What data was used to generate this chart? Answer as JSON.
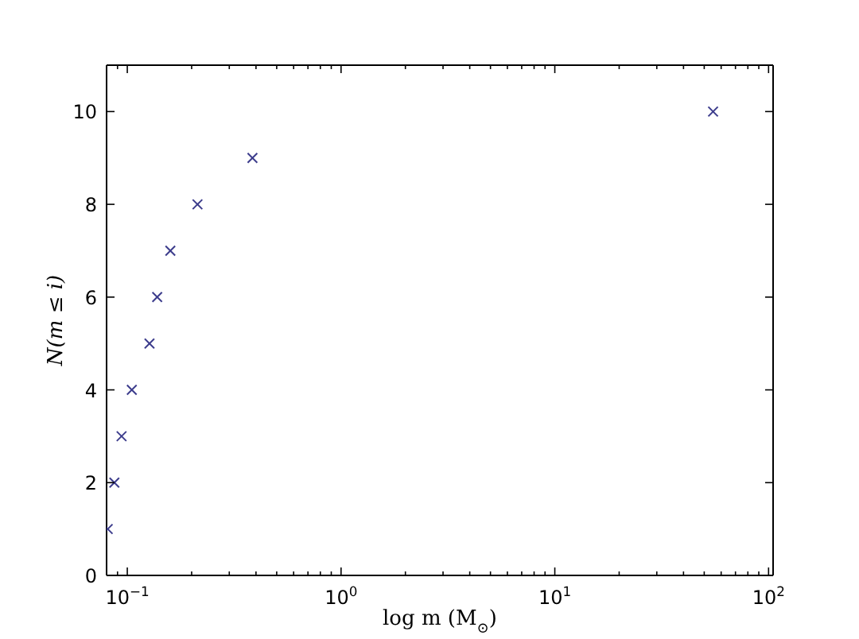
{
  "chart_data": {
    "type": "scatter",
    "xlabel": "log m (M$_{⊙}$)",
    "ylabel": "N(m ≤ i)",
    "x": [
      0.081,
      0.087,
      0.094,
      0.105,
      0.127,
      0.138,
      0.159,
      0.213,
      0.385,
      55
    ],
    "series": [
      {
        "color": "#3c3c8c",
        "values": [
          1,
          2,
          3,
          4,
          5,
          6,
          7,
          8,
          9,
          10
        ]
      }
    ],
    "marker": "cross",
    "log": "x",
    "xlim": [
      0.08,
      105
    ],
    "xticks": [
      {
        "value": 0.09,
        "label": null
      },
      {
        "value": 0.1,
        "label": "10$^{−1}$"
      },
      {
        "value": 0.2,
        "label": null
      },
      {
        "value": 0.3,
        "label": null
      },
      {
        "value": 0.4,
        "label": null
      },
      {
        "value": 0.5,
        "label": null
      },
      {
        "value": 0.6,
        "label": null
      },
      {
        "value": 0.7,
        "label": null
      },
      {
        "value": 0.8,
        "label": null
      },
      {
        "value": 0.9,
        "label": null
      },
      {
        "value": 1,
        "label": "10$^{0}$"
      },
      {
        "value": 2,
        "label": null
      },
      {
        "value": 3,
        "label": null
      },
      {
        "value": 4,
        "label": null
      },
      {
        "value": 5,
        "label": null
      },
      {
        "value": 6,
        "label": null
      },
      {
        "value": 7,
        "label": null
      },
      {
        "value": 8,
        "label": null
      },
      {
        "value": 9,
        "label": null
      },
      {
        "value": 10,
        "label": "10$^{1}$"
      },
      {
        "value": 20,
        "label": null
      },
      {
        "value": 30,
        "label": null
      },
      {
        "value": 40,
        "label": null
      },
      {
        "value": 50,
        "label": null
      },
      {
        "value": 60,
        "label": null
      },
      {
        "value": 70,
        "label": null
      },
      {
        "value": 80,
        "label": null
      },
      {
        "value": 90,
        "label": null
      },
      {
        "value": 100,
        "label": "10$^{2}$"
      }
    ],
    "ylim": [
      0,
      11
    ],
    "yticks": [
      0,
      2,
      4,
      6,
      8,
      10
    ]
  }
}
